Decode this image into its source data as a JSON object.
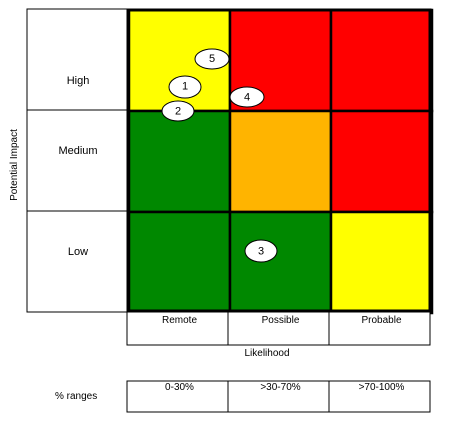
{
  "chart_data": {
    "type": "heatmap",
    "ylabel": "Potential  Impact",
    "xlabel": "Likelihood",
    "rows": [
      "High",
      "Medium",
      "Low"
    ],
    "columns": [
      "Remote",
      "Possible",
      "Probable"
    ],
    "cell_colors": [
      [
        "#ffff00",
        "#ff0000",
        "#ff0000"
      ],
      [
        "#008800",
        "#ffb400",
        "#ff0000"
      ],
      [
        "#008800",
        "#008800",
        "#ffff00"
      ]
    ],
    "color_legend": {
      "green": "#008800",
      "yellow": "#ffff00",
      "amber": "#ffb400",
      "red": "#ff0000"
    },
    "markers": [
      {
        "label": "5",
        "row": "High",
        "column": "Remote"
      },
      {
        "label": "1",
        "row": "High",
        "column": "Remote"
      },
      {
        "label": "2",
        "row": "High",
        "column": "Remote"
      },
      {
        "label": "4",
        "row": "High",
        "column": "Possible"
      },
      {
        "label": "3",
        "row": "Low",
        "column": "Possible"
      }
    ],
    "ranges_label": "% ranges",
    "ranges": [
      "0-30%",
      ">30-70%",
      ">70-100%"
    ]
  }
}
